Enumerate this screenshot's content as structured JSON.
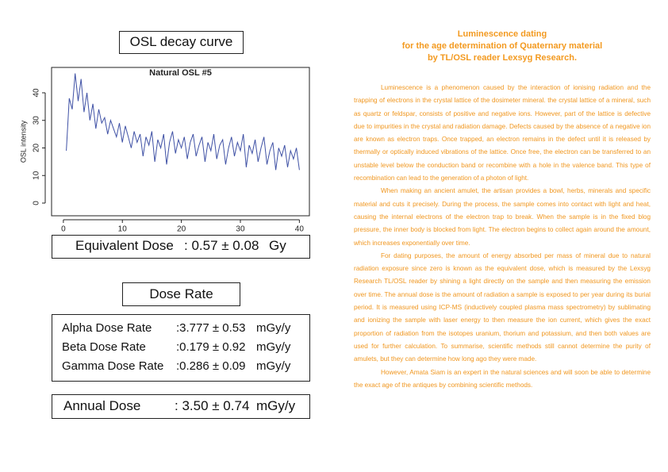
{
  "panel": {
    "heading": "OSL decay curve",
    "chart_data": {
      "type": "line",
      "title": "Natural OSL #5",
      "ylabel": "OSL intensity",
      "color": "#3f51a5",
      "xlim": [
        -2,
        41.7
      ],
      "ylim": [
        -4.6,
        49.2
      ],
      "xticks": [
        0,
        10,
        20,
        30,
        40
      ],
      "yticks": [
        0,
        10,
        20,
        30,
        40
      ],
      "x": [
        0.5,
        1,
        1.5,
        2,
        2.5,
        3,
        3.5,
        4,
        4.5,
        5,
        5.5,
        6,
        6.5,
        7,
        7.5,
        8,
        8.5,
        9,
        9.5,
        10,
        10.5,
        11,
        11.5,
        12,
        12.5,
        13,
        13.5,
        14,
        14.5,
        15,
        15.5,
        16,
        16.5,
        17,
        17.5,
        18,
        18.5,
        19,
        19.5,
        20,
        20.5,
        21,
        21.5,
        22,
        22.5,
        23,
        23.5,
        24,
        24.5,
        25,
        25.5,
        26,
        26.5,
        27,
        27.5,
        28,
        28.5,
        29,
        29.5,
        30,
        30.5,
        31,
        31.5,
        32,
        32.5,
        33,
        33.5,
        34,
        34.5,
        35,
        35.5,
        36,
        36.5,
        37,
        37.5,
        38,
        38.5,
        39,
        39.5,
        40
      ],
      "values": [
        19,
        38,
        34,
        47,
        37,
        45,
        33,
        40,
        30,
        36,
        27,
        34,
        29,
        31,
        25,
        30,
        27,
        24,
        29,
        22,
        28,
        24,
        20,
        26,
        22,
        25,
        17,
        24,
        21,
        26,
        15,
        23,
        20,
        25,
        14,
        22,
        26,
        18,
        23,
        20,
        24,
        16,
        22,
        25,
        17,
        21,
        24,
        15,
        22,
        19,
        25,
        16,
        21,
        23,
        14,
        20,
        24,
        17,
        22,
        19,
        25,
        13,
        21,
        18,
        23,
        15,
        20,
        24,
        14,
        19,
        22,
        12,
        20,
        17,
        21,
        13,
        19,
        16,
        20,
        12
      ]
    },
    "equivalent_dose": {
      "label": "Equivalent Dose",
      "value": ": 0.57 ± 0.08",
      "unit": "Gy"
    },
    "dose_rate_heading": "Dose Rate",
    "dose_rates": [
      {
        "label": "Alpha Dose Rate",
        "value": ":3.777 ± 0.53",
        "unit": "mGy/y"
      },
      {
        "label": "Beta Dose Rate",
        "value": ":0.179 ± 0.92",
        "unit": "mGy/y"
      },
      {
        "label": "Gamma Dose Rate",
        "value": ":0.286 ± 0.09",
        "unit": "mGy/y"
      }
    ],
    "annual_dose": {
      "label": "Annual Dose",
      "value": ": 3.50 ± 0.74",
      "unit": "mGy/y"
    }
  },
  "article": {
    "title": [
      "Luminescence dating",
      "for the age determination of Quaternary material",
      "by TL/OSL reader Lexsyg Research."
    ],
    "paragraphs": [
      "Luminescence is a phenomenon caused by the interaction of ionising radiation and the trapping of electrons in the crystal lattice of the dosimeter mineral. the crystal lattice of a mineral, such as quartz or feldspar, consists of positive and negative ions. However, part of the lattice is defective due to impurities in the crystal and radiation damage. Defects caused by the absence of a negative ion are known as electron traps. Once trapped, an electron remains in the defect until it is released by thermally or optically induced vibrations of the lattice. Once free, the electron can be transferred to an unstable level below the conduction band or recombine with a hole in the valence band. This type of recombination can lead to the generation of a photon of light.",
      "When making an ancient amulet, the artisan provides a bowl, herbs, minerals and specific material and cuts it precisely. During the process, the sample comes into contact with light and heat, causing the internal electrons of the electron trap to break. When the sample is in the fixed blog pressure, the inner body is blocked from light. The electron begins to collect again around the amount, which increases exponentially over time.",
      "For dating purposes, the amount of energy absorbed per mass of mineral due to natural radiation exposure since zero is known as the equivalent dose, which is measured by the Lexsyg Research TL/OSL reader by shining a light directly on the sample and then measuring the emission over time. The annual dose is the amount of radiation a sample is exposed to per year during its burial period. It is measured using ICP-MS (inductively coupled plasma mass spectrometry) by sublimating and ionizing the sample with laser energy to then measure the ion current, which gives the exact proportion of radiation from the isotopes uranium, thorium and potassium, and then both values are used for further calculation. To summarise, scientific methods still cannot determine the purity of amulets, but they can determine how long ago they were made.",
      "However, Amata Siam is an expert in the natural sciences and will soon be able to determine the exact age of the antiques by combining scientific methods."
    ]
  }
}
